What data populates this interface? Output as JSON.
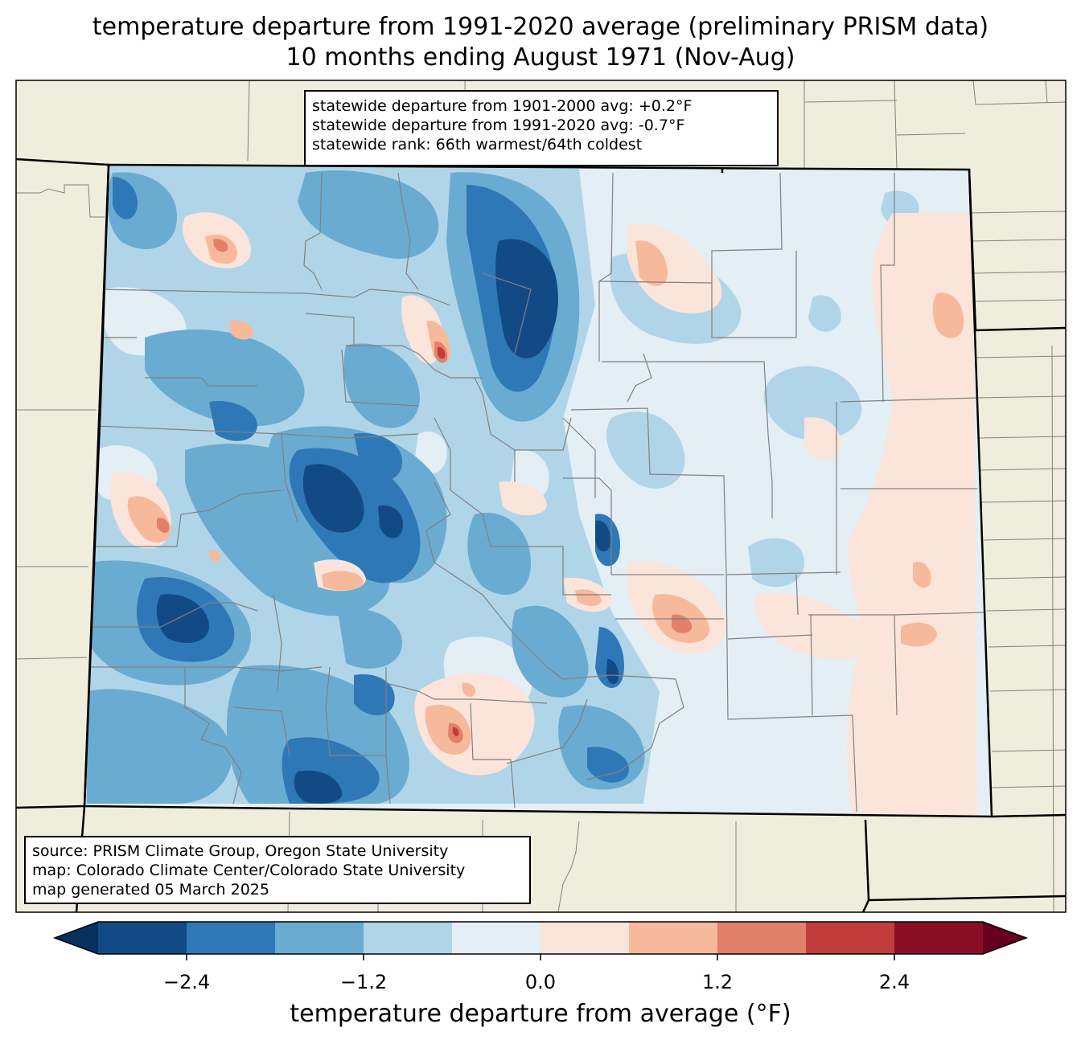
{
  "title": {
    "line1": "temperature departure from 1991-2020 average (preliminary PRISM data)",
    "line2": "10 months ending August 1971 (Nov-Aug)"
  },
  "stats": {
    "line1": "statewide departure from 1901-2000 avg: +0.2°F",
    "line2": "statewide departure from 1991-2020 avg: -0.7°F",
    "line3": "statewide rank: 66th warmest/64th coldest"
  },
  "source": {
    "line1": "source: PRISM Climate Group, Oregon State University",
    "line2": "map: Colorado Climate Center/Colorado State University",
    "line3": "map generated 05 March 2025"
  },
  "colorbar": {
    "label": "temperature departure from average (°F)",
    "ticks": [
      "−2.4",
      "−1.2",
      "0.0",
      "1.2",
      "2.4"
    ],
    "bins": [
      {
        "from": -3.0,
        "to": -2.4,
        "color": "#124a86"
      },
      {
        "from": -2.4,
        "to": -1.8,
        "color": "#2f78b8"
      },
      {
        "from": -1.8,
        "to": -1.2,
        "color": "#6aabd2"
      },
      {
        "from": -1.2,
        "to": -0.6,
        "color": "#b1d5e8"
      },
      {
        "from": -0.6,
        "to": 0.0,
        "color": "#e4eef5"
      },
      {
        "from": 0.0,
        "to": 0.6,
        "color": "#fbe4d9"
      },
      {
        "from": 0.6,
        "to": 1.2,
        "color": "#f7b99c"
      },
      {
        "from": 1.2,
        "to": 1.8,
        "color": "#e2806a"
      },
      {
        "from": 1.8,
        "to": 2.4,
        "color": "#c13d3d"
      },
      {
        "from": 2.4,
        "to": 3.0,
        "color": "#880e25"
      }
    ],
    "under_color": "#073061",
    "over_color": "#67001f"
  },
  "colors": {
    "land": "#efeedc",
    "county_lines": "#808080",
    "state_lines": "#000000"
  }
}
